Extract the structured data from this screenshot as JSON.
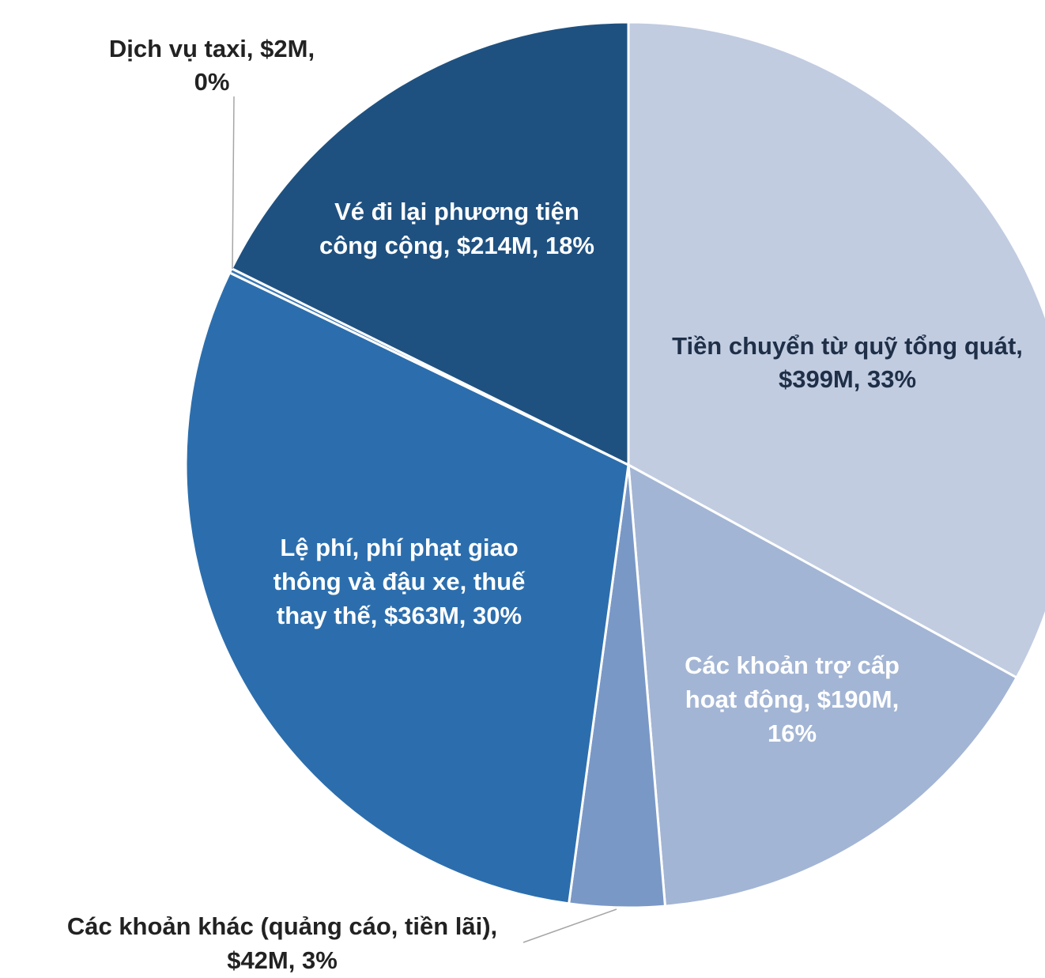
{
  "chart_data": {
    "type": "pie",
    "title": "",
    "slices": [
      {
        "name": "Tiền chuyển từ quỹ tổng quát",
        "value": 399,
        "percent": 33,
        "color": "#c1cce1",
        "label_lines": [
          "Tiền chuyển từ quỹ tổng quát,",
          "$399M, 33%"
        ]
      },
      {
        "name": "Các khoản trợ cấp hoạt động",
        "value": 190,
        "percent": 16,
        "color": "#a3b5d4",
        "label_lines": [
          "Các khoản trợ cấp",
          "hoạt động,  $190M,",
          "16%"
        ]
      },
      {
        "name": "Các khoản khác (quảng cáo, tiền lãi)",
        "value": 42,
        "percent": 3,
        "color": "#7a98c6",
        "label_lines": [
          "Các khoản khác (quảng cáo, tiền lãi),",
          "$42M, 3%"
        ]
      },
      {
        "name": "Lệ phí, phí phạt giao thông và đậu xe, thuế thay thế",
        "value": 363,
        "percent": 30,
        "color": "#2c6ead",
        "label_lines": [
          "Lệ phí, phí phạt giao",
          "thông và đậu xe, thuế",
          "thay thế,  $363M, 30%"
        ]
      },
      {
        "name": "Dịch vụ taxi",
        "value": 2,
        "percent": 0,
        "color": "#3a76b4",
        "label_lines": [
          "Dịch vụ taxi,  $2M,",
          "0%"
        ]
      },
      {
        "name": "Vé đi lại phương tiện công cộng",
        "value": 214,
        "percent": 18,
        "color": "#1f5180",
        "label_lines": [
          "Vé đi lại phương tiện",
          "công cộng,  $214M, 18%"
        ]
      }
    ],
    "legend": "none"
  }
}
